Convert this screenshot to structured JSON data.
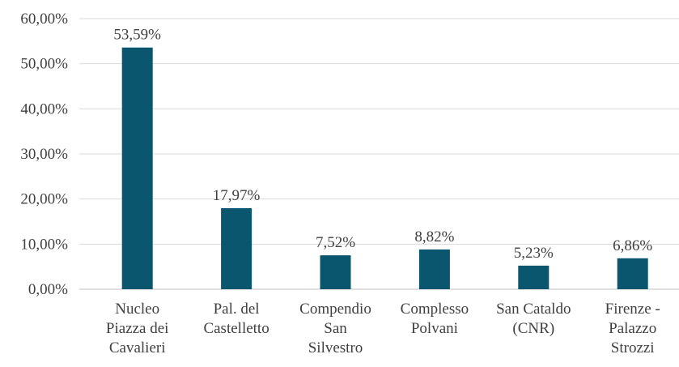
{
  "chart_data": {
    "type": "bar",
    "categories": [
      "Nucleo Piazza dei Cavalieri",
      "Pal. del Castelletto",
      "Compendio San Silvestro",
      "Complesso Polvani",
      "San Cataldo (CNR)",
      "Firenze - Palazzo Strozzi"
    ],
    "values": [
      53.59,
      17.97,
      7.52,
      8.82,
      5.23,
      6.86
    ],
    "value_labels": [
      "53,59%",
      "17,97%",
      "7,52%",
      "8,82%",
      "5,23%",
      "6,86%"
    ],
    "color": "#0b566f",
    "ylim": [
      0,
      60
    ],
    "yticks": [
      {
        "value": 0,
        "label": "0,00%"
      },
      {
        "value": 10,
        "label": "10,00%"
      },
      {
        "value": 20,
        "label": "20,00%"
      },
      {
        "value": 30,
        "label": "30,00%"
      },
      {
        "value": 40,
        "label": "40,00%"
      },
      {
        "value": 50,
        "label": "50,00%"
      },
      {
        "value": 60,
        "label": "60,00%"
      }
    ],
    "grid": true
  }
}
